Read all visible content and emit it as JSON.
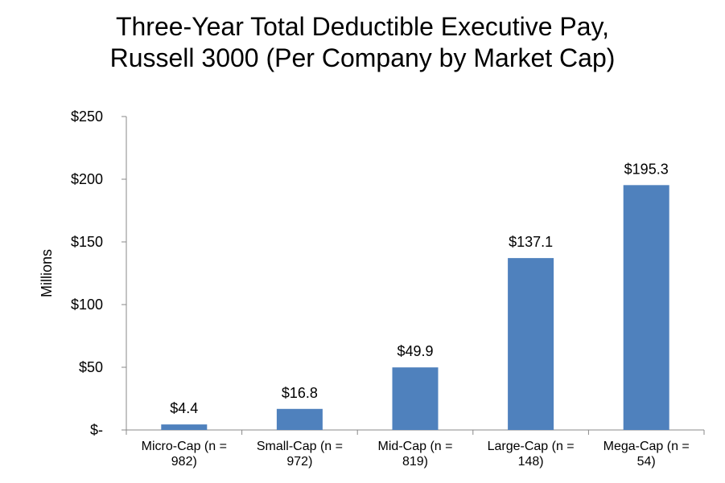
{
  "chart_data": {
    "type": "bar",
    "title_lines": [
      "Three-Year Total Deductible Executive Pay,",
      "Russell 3000 (Per Company by Market Cap)"
    ],
    "xlabel": "",
    "ylabel": "Millions",
    "ylim": [
      0,
      250
    ],
    "yticks": [
      0,
      50,
      100,
      150,
      200,
      250
    ],
    "ytick_labels": [
      "$-",
      "$50",
      "$100",
      "$150",
      "$200",
      "$250"
    ],
    "categories": [
      [
        "Micro-Cap (n =",
        "982)"
      ],
      [
        "Small-Cap (n =",
        "972)"
      ],
      [
        "Mid-Cap (n =",
        "819)"
      ],
      [
        "Large-Cap (n =",
        "148)"
      ],
      [
        "Mega-Cap (n =",
        "54)"
      ]
    ],
    "values": [
      4.4,
      16.8,
      49.9,
      137.1,
      195.3
    ],
    "data_labels": [
      "$4.4",
      "$16.8",
      "$49.9",
      "$137.1",
      "$195.3"
    ],
    "bar_color": "#4f81bd",
    "grid": false,
    "legend": "none"
  }
}
